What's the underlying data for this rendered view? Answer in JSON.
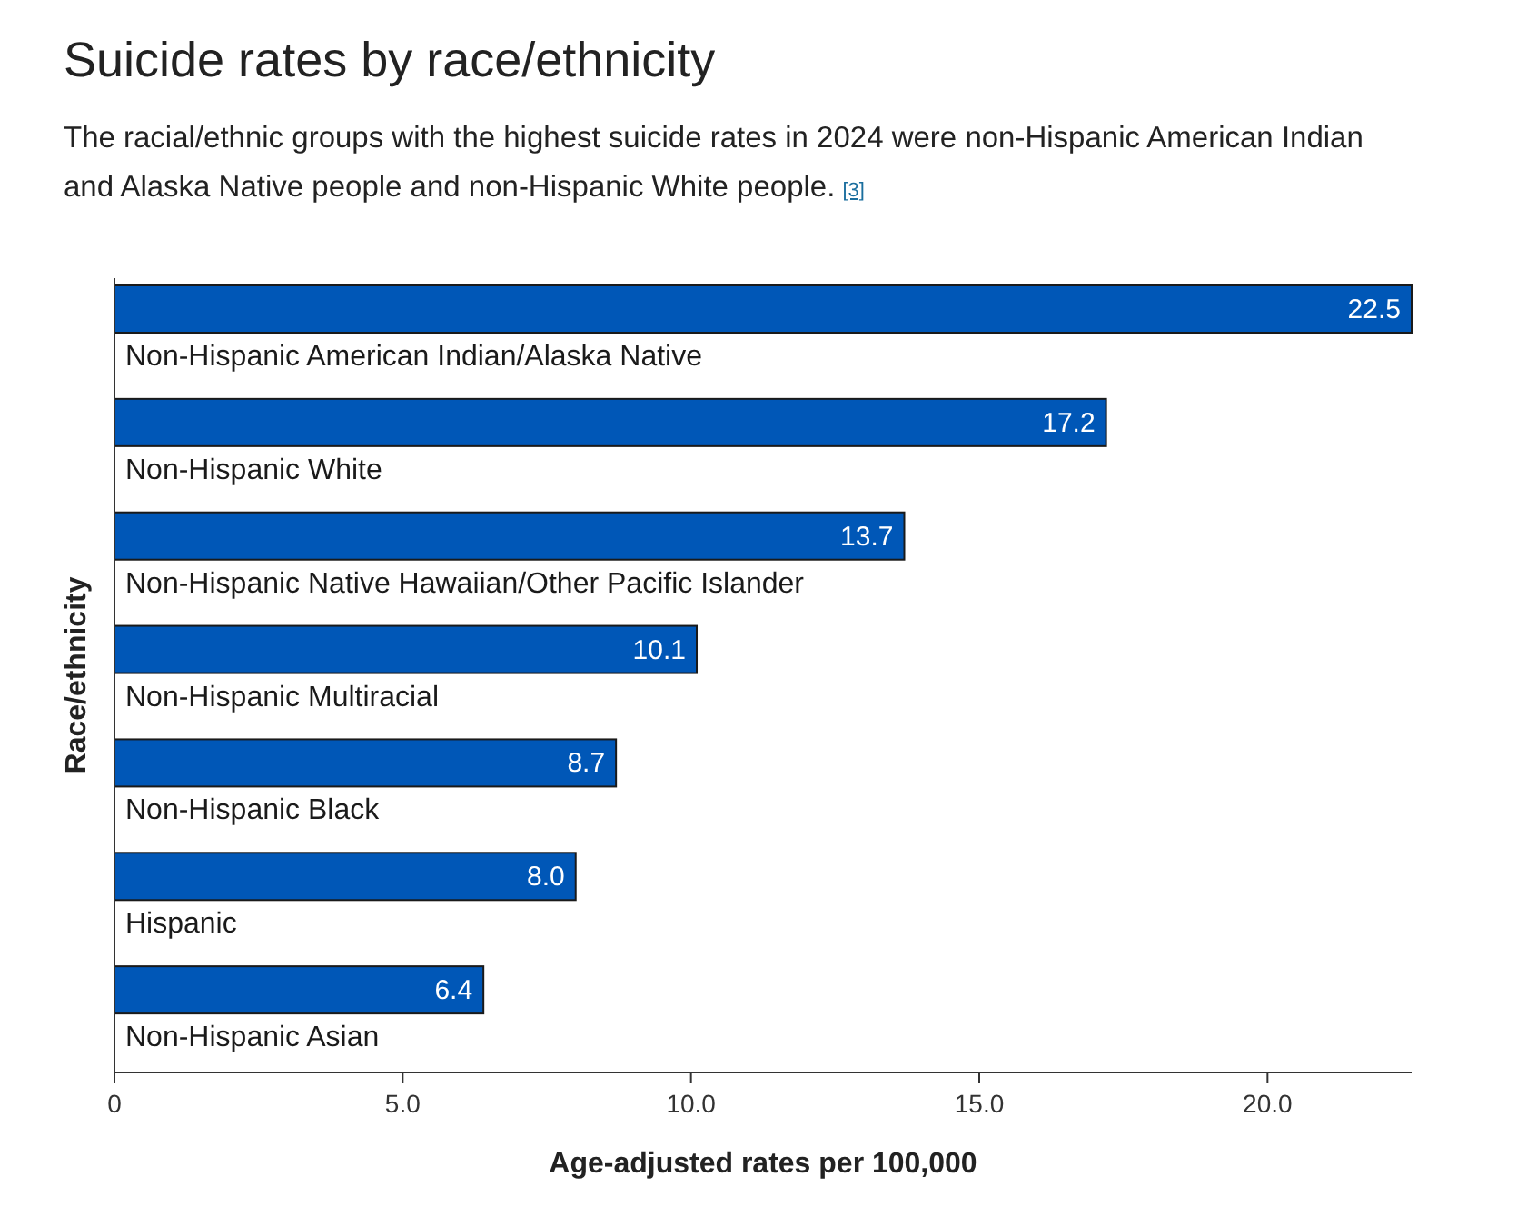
{
  "chart_data": {
    "type": "bar",
    "orientation": "horizontal",
    "title": "Suicide rates by race/ethnicity",
    "subtitle": "The racial/ethnic groups with the highest suicide rates in 2024 were non-Hispanic American Indian and Alaska Native people and non-Hispanic White people.",
    "annotations": [
      "[3]"
    ],
    "categories": [
      "Non-Hispanic American Indian/Alaska Native",
      "Non-Hispanic White",
      "Non-Hispanic Native Hawaiian/Other Pacific Islander",
      "Non-Hispanic Multiracial",
      "Non-Hispanic Black",
      "Hispanic",
      "Non-Hispanic Asian"
    ],
    "values": [
      22.5,
      17.2,
      13.7,
      10.1,
      8.7,
      8.0,
      6.4
    ],
    "value_labels": [
      "22.5",
      "17.2",
      "13.7",
      "10.1",
      "8.7",
      "8.0",
      "6.4"
    ],
    "color": "#0057b7",
    "xlim": [
      0,
      22.5
    ],
    "xticks": [
      0,
      {
        "value": 5,
        "label": "5.0"
      },
      {
        "value": 10,
        "label": "10.0"
      },
      {
        "value": 15,
        "label": "15.0"
      },
      {
        "value": 20,
        "label": "20.0"
      }
    ],
    "xlabel": "Age-adjusted rates per 100,000",
    "ylabel": "Race/ethnicity"
  }
}
